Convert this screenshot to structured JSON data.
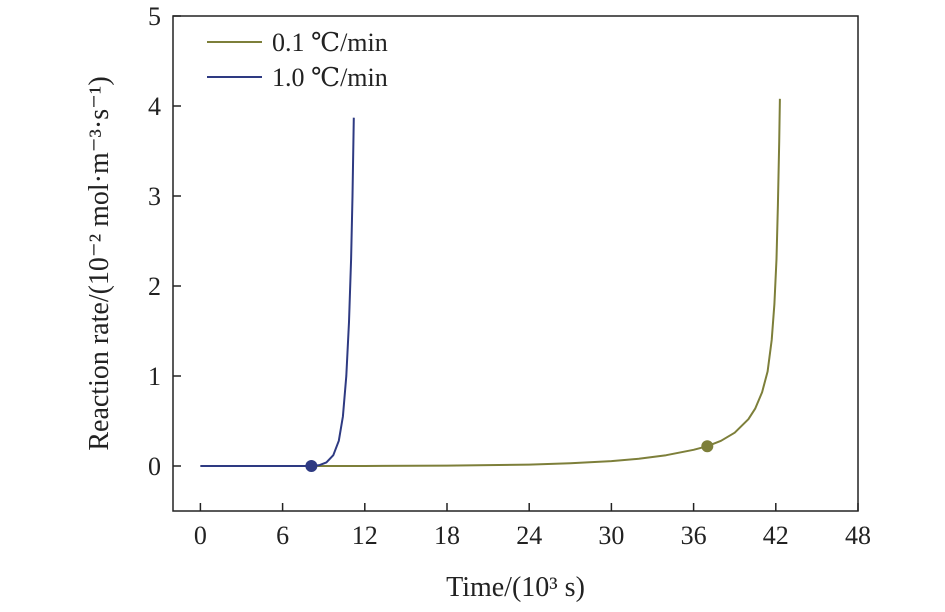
{
  "chart_data": {
    "type": "line",
    "title": "",
    "xlabel": "Time/(10³ s)",
    "ylabel": "Reaction rate/(10⁻² mol·m⁻³·s⁻¹)",
    "xlim": [
      -2,
      48
    ],
    "ylim": [
      -0.5,
      5
    ],
    "xticks": [
      0,
      6,
      12,
      18,
      24,
      30,
      36,
      42,
      48
    ],
    "yticks": [
      0,
      1,
      2,
      3,
      4,
      5
    ],
    "grid": false,
    "legend_position": "top-left",
    "series": [
      {
        "name": "0.1 ℃/min",
        "color": "#7d7f3a",
        "x": [
          0,
          6,
          12,
          18,
          24,
          27,
          30,
          32,
          34,
          36,
          37,
          38,
          39,
          40,
          40.5,
          41,
          41.4,
          41.7,
          41.9,
          42.05,
          42.15,
          42.25,
          42.3
        ],
        "y": [
          0,
          0,
          0,
          0.005,
          0.015,
          0.03,
          0.055,
          0.08,
          0.12,
          0.18,
          0.22,
          0.28,
          0.37,
          0.52,
          0.64,
          0.82,
          1.05,
          1.4,
          1.8,
          2.3,
          2.9,
          3.6,
          4.08
        ],
        "marker": {
          "x": 37,
          "y": 0.22
        }
      },
      {
        "name": "1.0 ℃/min",
        "color": "#2e3a82",
        "x": [
          0,
          4,
          7,
          8.1,
          8.7,
          9.2,
          9.7,
          10.1,
          10.4,
          10.65,
          10.85,
          11,
          11.1,
          11.2
        ],
        "y": [
          0,
          0,
          0,
          0,
          0.01,
          0.04,
          0.12,
          0.28,
          0.55,
          1.0,
          1.6,
          2.3,
          3.0,
          3.87
        ],
        "marker": {
          "x": 8.1,
          "y": 0
        }
      }
    ]
  }
}
